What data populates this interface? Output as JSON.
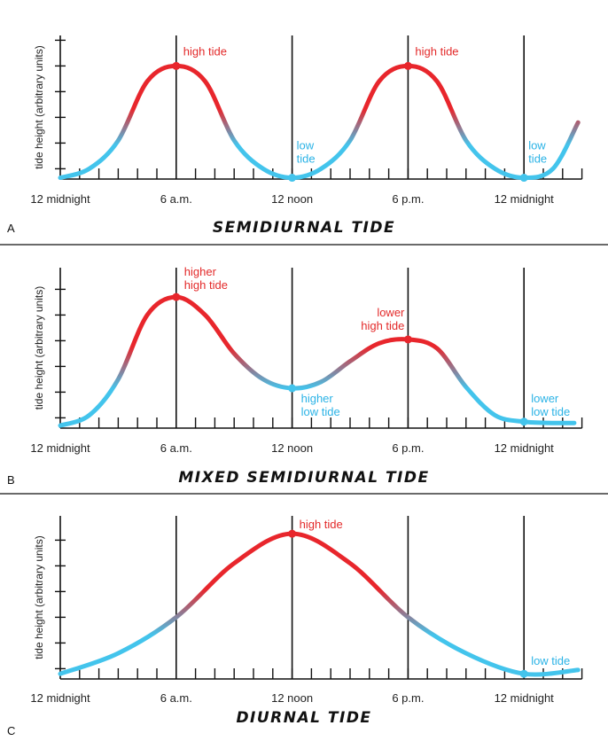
{
  "colors": {
    "high": "#e8262c",
    "low": "#43c4ec",
    "axis": "#111111"
  },
  "chart_data": [
    {
      "type": "line",
      "panel_letter": "A",
      "title": "SEMIDIURNAL TIDE",
      "ylabel": "tide height (arbitrary units)",
      "xlabel": "",
      "xlim": [
        0,
        27
      ],
      "ylim": [
        0,
        6.5
      ],
      "x_tick_labels": [
        {
          "x": 0,
          "label": "12 midnight"
        },
        {
          "x": 6,
          "label": "6 a.m."
        },
        {
          "x": 12,
          "label": "12 noon"
        },
        {
          "x": 18,
          "label": "6 p.m."
        },
        {
          "x": 24,
          "label": "12 midnight"
        }
      ],
      "y_ticks": [
        0.4,
        1.4,
        2.4,
        3.4,
        4.4,
        5.4
      ],
      "series": [
        {
          "name": "tide height",
          "points": [
            [
              0,
              0.05
            ],
            [
              1.5,
              0.4
            ],
            [
              3,
              1.5
            ],
            [
              4.5,
              3.8
            ],
            [
              6,
              4.4
            ],
            [
              7.5,
              3.8
            ],
            [
              9,
              1.5
            ],
            [
              10.5,
              0.4
            ],
            [
              12,
              0.05
            ],
            [
              13.5,
              0.4
            ],
            [
              15,
              1.5
            ],
            [
              16.5,
              3.8
            ],
            [
              18,
              4.4
            ],
            [
              19.5,
              3.8
            ],
            [
              21,
              1.5
            ],
            [
              22.5,
              0.4
            ],
            [
              24,
              0.05
            ],
            [
              25.5,
              0.4
            ],
            [
              26.8,
              2.2
            ]
          ]
        }
      ],
      "annotations": [
        {
          "x": 6,
          "y": 4.4,
          "lines": [
            "high tide"
          ],
          "kind": "high"
        },
        {
          "x": 12,
          "y": 0.05,
          "lines": [
            "low",
            "tide"
          ],
          "kind": "low"
        },
        {
          "x": 18,
          "y": 4.4,
          "lines": [
            "high tide"
          ],
          "kind": "high"
        },
        {
          "x": 24,
          "y": 0.05,
          "lines": [
            "low",
            "tide"
          ],
          "kind": "low"
        }
      ]
    },
    {
      "type": "line",
      "panel_letter": "B",
      "title": "MIXED SEMIDIURNAL TIDE",
      "ylabel": "tide height (arbitrary units)",
      "xlabel": "",
      "xlim": [
        0,
        27
      ],
      "ylim": [
        0,
        6.5
      ],
      "x_tick_labels": [
        {
          "x": 0,
          "label": "12 midnight"
        },
        {
          "x": 6,
          "label": "6 a.m."
        },
        {
          "x": 12,
          "label": "12 noon"
        },
        {
          "x": 18,
          "label": "6 p.m."
        },
        {
          "x": 24,
          "label": "12 midnight"
        }
      ],
      "y_ticks": [
        0.4,
        1.4,
        2.4,
        3.4,
        4.4,
        5.4
      ],
      "series": [
        {
          "name": "tide height",
          "points": [
            [
              0,
              0.1
            ],
            [
              1.5,
              0.5
            ],
            [
              3,
              1.9
            ],
            [
              4.5,
              4.4
            ],
            [
              6,
              5.1
            ],
            [
              7.5,
              4.4
            ],
            [
              9,
              2.9
            ],
            [
              10.5,
              1.9
            ],
            [
              12,
              1.55
            ],
            [
              13.5,
              1.8
            ],
            [
              15,
              2.6
            ],
            [
              16.5,
              3.3
            ],
            [
              18,
              3.45
            ],
            [
              19.5,
              3.1
            ],
            [
              21,
              1.6
            ],
            [
              22.5,
              0.5
            ],
            [
              24,
              0.25
            ],
            [
              25.5,
              0.2
            ],
            [
              26.6,
              0.2
            ]
          ]
        }
      ],
      "annotations": [
        {
          "x": 6,
          "y": 5.1,
          "lines": [
            "higher",
            "high tide"
          ],
          "kind": "high"
        },
        {
          "x": 12,
          "y": 1.55,
          "lines": [
            "higher",
            "low tide"
          ],
          "kind": "low"
        },
        {
          "x": 18,
          "y": 3.45,
          "lines": [
            "lower",
            "high tide"
          ],
          "kind": "high"
        },
        {
          "x": 24,
          "y": 0.25,
          "lines": [
            "lower",
            "low tide"
          ],
          "kind": "low"
        }
      ]
    },
    {
      "type": "line",
      "panel_letter": "C",
      "title": "DIURNAL TIDE",
      "ylabel": "tide height (arbitrary units)",
      "xlabel": "",
      "xlim": [
        0,
        27
      ],
      "ylim": [
        0,
        6.5
      ],
      "x_tick_labels": [
        {
          "x": 0,
          "label": "12 midnight"
        },
        {
          "x": 6,
          "label": "6 a.m."
        },
        {
          "x": 12,
          "label": "12 noon"
        },
        {
          "x": 18,
          "label": "6 p.m."
        },
        {
          "x": 24,
          "label": "12 midnight"
        }
      ],
      "y_ticks": [
        0.4,
        1.4,
        2.4,
        3.4,
        4.4,
        5.4
      ],
      "series": [
        {
          "name": "tide height",
          "points": [
            [
              0,
              0.2
            ],
            [
              3,
              1.0
            ],
            [
              6,
              2.4
            ],
            [
              9,
              4.5
            ],
            [
              12,
              5.65
            ],
            [
              15,
              4.5
            ],
            [
              18,
              2.4
            ],
            [
              21,
              1.0
            ],
            [
              24,
              0.2
            ],
            [
              26.8,
              0.35
            ]
          ]
        }
      ],
      "annotations": [
        {
          "x": 12,
          "y": 5.65,
          "lines": [
            "high tide"
          ],
          "kind": "high"
        },
        {
          "x": 24,
          "y": 0.2,
          "lines": [
            "low tide"
          ],
          "kind": "low"
        }
      ]
    }
  ]
}
